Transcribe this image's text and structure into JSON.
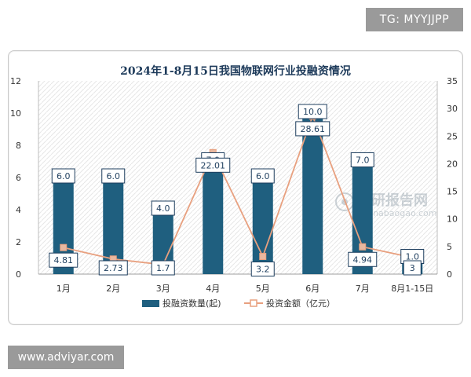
{
  "badges": {
    "tg": "TG: MYYJJPP",
    "site": "www.adviyar.com"
  },
  "watermark": {
    "brand": "观研报告网",
    "url": "chinabaogao.com"
  },
  "chart_data": {
    "type": "bar+line",
    "title": "2024年1-8月15日我国物联网行业投融资情况",
    "categories": [
      "1月",
      "2月",
      "3月",
      "4月",
      "5月",
      "6月",
      "7月",
      "8月1-15日"
    ],
    "series": [
      {
        "name": "投融资数量(起)",
        "type": "bar",
        "axis": "left",
        "values": [
          6,
          6,
          4,
          7,
          6,
          10,
          7,
          1
        ],
        "labels": [
          "6.0",
          "6.0",
          "4.0",
          "7.0",
          "6.0",
          "10.0",
          "7.0",
          "1.0"
        ],
        "color": "#1f5f7f"
      },
      {
        "name": "投资金额（亿元）",
        "type": "line",
        "axis": "right",
        "values": [
          4.81,
          2.73,
          1.7,
          22.01,
          3.2,
          28.61,
          4.94,
          3
        ],
        "labels": [
          "4.81",
          "2.73",
          "1.7",
          "22.01",
          "3.2",
          "28.61",
          "4.94",
          "3"
        ],
        "color": "#e8a07f"
      }
    ],
    "y_left": {
      "min": 0,
      "max": 12,
      "ticks": [
        "0",
        "2",
        "4",
        "6",
        "8",
        "10",
        "12"
      ]
    },
    "y_right": {
      "min": 0,
      "max": 35,
      "ticks": [
        "0",
        "5",
        "10",
        "15",
        "20",
        "25",
        "30",
        "35"
      ]
    },
    "grid": false,
    "legend_position": "bottom"
  }
}
